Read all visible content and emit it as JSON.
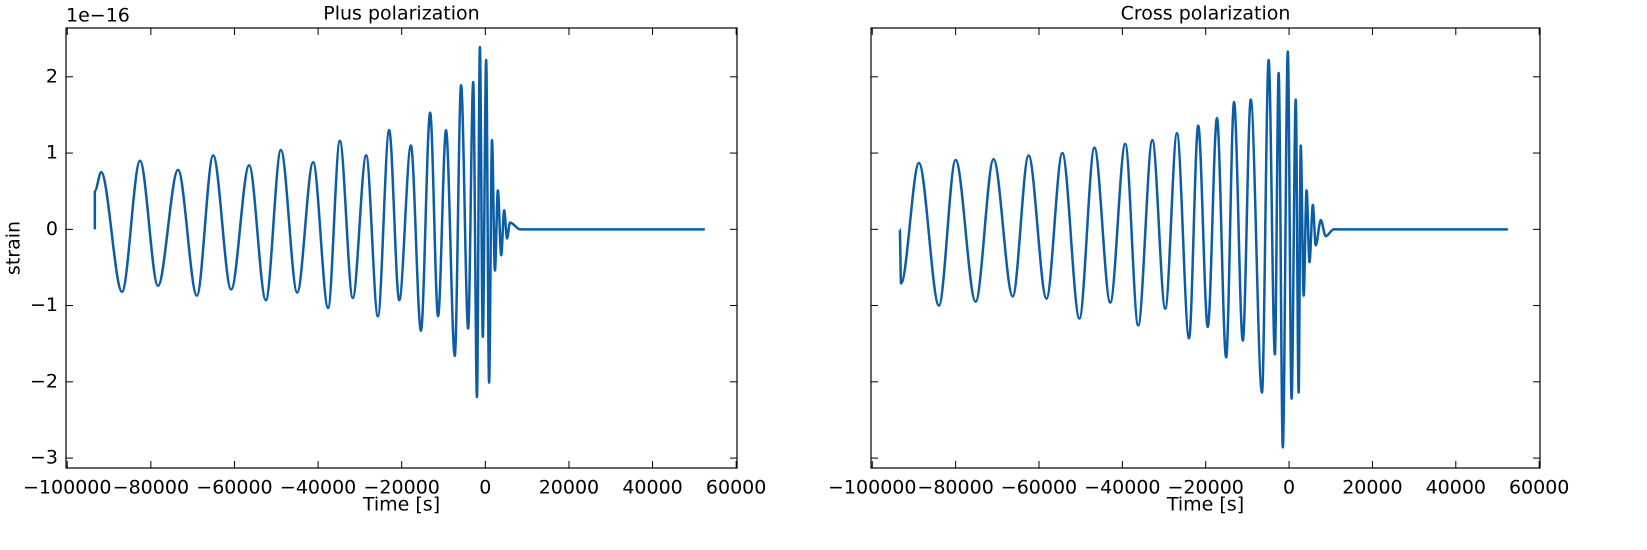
{
  "chart_data": [
    {
      "type": "line",
      "title": "Plus polarization",
      "xlabel": "Time [s]",
      "ylabel": "strain",
      "offset_text": "1e−16",
      "color": "#0c5da5",
      "x": [
        -93400,
        -93400,
        -91900,
        -86900,
        -82600,
        -78300,
        -73500,
        -69000,
        -65100,
        -60800,
        -56500,
        -52500,
        -48900,
        -45000,
        -41200,
        -37600,
        -34800,
        -31700,
        -28500,
        -25700,
        -23000,
        -20600,
        -17800,
        -15400,
        -13200,
        -11300,
        -9400,
        -7300,
        -5800,
        -4100,
        -2900,
        -2000,
        -1300,
        -600,
        200,
        900,
        1600,
        2300,
        3000,
        3800,
        4500,
        5200,
        5900,
        8300,
        52500
      ],
      "values": [
        0,
        0.5,
        0.75,
        -0.82,
        0.9,
        -0.74,
        0.78,
        -0.87,
        0.97,
        -0.79,
        0.84,
        -0.93,
        1.04,
        -0.83,
        0.88,
        -1.03,
        1.16,
        -0.9,
        0.97,
        -1.14,
        1.3,
        -0.93,
        1.1,
        -1.33,
        1.53,
        -1.14,
        1.3,
        -1.66,
        1.89,
        -1.3,
        1.93,
        -2.2,
        2.39,
        -1.41,
        2.22,
        -2.01,
        1.17,
        -0.54,
        0.51,
        -0.34,
        0.25,
        -0.12,
        0.09,
        0,
        0
      ],
      "xlim": [
        -100300,
        60200
      ],
      "ylim": [
        -3.13,
        2.64
      ],
      "xticks": [
        {
          "value": -100000,
          "label": "−100000"
        },
        {
          "value": -80000,
          "label": "−80000"
        },
        {
          "value": -60000,
          "label": "−60000"
        },
        {
          "value": -40000,
          "label": "−40000"
        },
        {
          "value": -20000,
          "label": "−20000"
        },
        0,
        20000,
        40000,
        60000
      ],
      "yticks": [
        {
          "value": -3,
          "label": "−3"
        },
        {
          "value": -2,
          "label": "−2"
        },
        {
          "value": -1,
          "label": "−1"
        },
        0,
        1,
        2
      ]
    },
    {
      "type": "line",
      "title": "Cross polarization",
      "xlabel": "Time [s]",
      "color": "#0c5da5",
      "x": [
        -93400,
        -93100,
        -88800,
        -84000,
        -80000,
        -75200,
        -70900,
        -66300,
        -62500,
        -58200,
        -54400,
        -50300,
        -46700,
        -42900,
        -39300,
        -36200,
        -32800,
        -29700,
        -26900,
        -24000,
        -21800,
        -19500,
        -17300,
        -15100,
        -13200,
        -11100,
        -9200,
        -6500,
        -4900,
        -3400,
        -2500,
        -1500,
        -300,
        600,
        1600,
        2300,
        2800,
        3500,
        4200,
        4900,
        5700,
        6400,
        7600,
        8800,
        10700,
        52500
      ],
      "values": [
        0,
        -0.71,
        0.87,
        -1.0,
        0.91,
        -0.95,
        0.92,
        -0.88,
        0.97,
        -0.91,
        1.0,
        -1.17,
        1.07,
        -0.96,
        1.12,
        -1.26,
        1.17,
        -1.04,
        1.26,
        -1.43,
        1.36,
        -1.28,
        1.46,
        -1.68,
        1.67,
        -1.46,
        1.7,
        -2.14,
        2.22,
        -1.64,
        2.05,
        -2.86,
        2.33,
        -2.22,
        1.7,
        -2.14,
        1.1,
        -0.87,
        0.51,
        -0.43,
        0.32,
        -0.21,
        0.12,
        -0.09,
        0,
        0
      ],
      "xlim": [
        -100300,
        60200
      ],
      "ylim": [
        -3.13,
        2.64
      ],
      "xticks": [
        {
          "value": -100000,
          "label": "−100000"
        },
        {
          "value": -80000,
          "label": "−80000"
        },
        {
          "value": -60000,
          "label": "−60000"
        },
        {
          "value": -40000,
          "label": "−40000"
        },
        {
          "value": -20000,
          "label": "−20000"
        },
        0,
        20000,
        40000,
        60000
      ],
      "yticks": [
        -3,
        -2,
        -1,
        0,
        1,
        2
      ],
      "ytick_labels": false
    }
  ]
}
